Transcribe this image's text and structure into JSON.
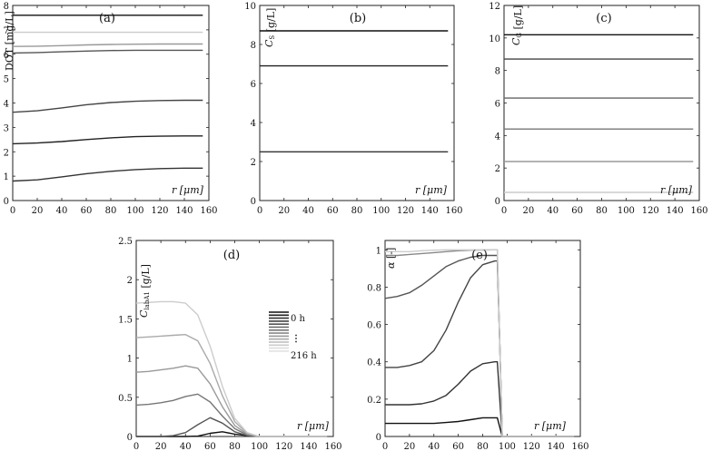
{
  "chart_data": [
    {
      "id": "a",
      "type": "line",
      "panel_label": "(a)",
      "ylabel": "DOT [mg/L]",
      "xlabel": "r [μm]",
      "xlim": [
        0,
        160
      ],
      "ylim": [
        0,
        8
      ],
      "xticks": [
        "0",
        "20",
        "40",
        "60",
        "80",
        "100",
        "120",
        "140",
        "160"
      ],
      "yticks": [
        "0",
        "1",
        "2",
        "3",
        "4",
        "5",
        "6",
        "7",
        "8"
      ],
      "x": [
        0,
        20,
        40,
        60,
        80,
        100,
        120,
        140,
        155
      ],
      "series": [
        {
          "color": "#111111",
          "values": [
            7.6,
            7.6,
            7.6,
            7.6,
            7.6,
            7.6,
            7.6,
            7.6,
            7.6
          ]
        },
        {
          "color": "#cccccc",
          "values": [
            6.9,
            6.9,
            6.9,
            6.9,
            6.9,
            6.9,
            6.9,
            6.9,
            6.9
          ]
        },
        {
          "color": "#999999",
          "values": [
            6.32,
            6.33,
            6.35,
            6.38,
            6.4,
            6.41,
            6.42,
            6.42,
            6.42
          ]
        },
        {
          "color": "#555555",
          "values": [
            6.05,
            6.07,
            6.1,
            6.13,
            6.15,
            6.16,
            6.16,
            6.16,
            6.16
          ]
        },
        {
          "color": "#444444",
          "values": [
            3.62,
            3.68,
            3.8,
            3.93,
            4.02,
            4.07,
            4.1,
            4.11,
            4.11
          ]
        },
        {
          "color": "#222222",
          "values": [
            2.33,
            2.36,
            2.42,
            2.5,
            2.57,
            2.62,
            2.64,
            2.65,
            2.65
          ]
        },
        {
          "color": "#333333",
          "values": [
            0.8,
            0.85,
            0.97,
            1.1,
            1.2,
            1.27,
            1.31,
            1.33,
            1.33
          ]
        }
      ]
    },
    {
      "id": "b",
      "type": "line",
      "panel_label": "(b)",
      "ylabel": "C_S [g/L]",
      "ylabel_main": "C",
      "ylabel_sub": "S",
      "ylabel_unit": " [g/L]",
      "xlabel": "r [μm]",
      "xlim": [
        0,
        160
      ],
      "ylim": [
        0,
        10
      ],
      "xticks": [
        "0",
        "20",
        "40",
        "60",
        "80",
        "100",
        "120",
        "140",
        "160"
      ],
      "yticks": [
        "0",
        "2",
        "4",
        "6",
        "8",
        "10"
      ],
      "x": [
        0,
        155
      ],
      "series": [
        {
          "color": "#111111",
          "values": [
            8.7,
            8.7
          ]
        },
        {
          "color": "#222222",
          "values": [
            6.9,
            6.9
          ]
        },
        {
          "color": "#333333",
          "values": [
            2.5,
            2.5
          ]
        }
      ]
    },
    {
      "id": "c",
      "type": "line",
      "panel_label": "(c)",
      "ylabel": "C_G [g/L]",
      "ylabel_main": "C",
      "ylabel_sub": "G",
      "ylabel_unit": " [g/L]",
      "xlabel": "r [μm]",
      "xlim": [
        0,
        160
      ],
      "ylim": [
        0,
        12
      ],
      "xticks": [
        "0",
        "20",
        "40",
        "60",
        "80",
        "100",
        "120",
        "140",
        "160"
      ],
      "yticks": [
        "0",
        "2",
        "4",
        "6",
        "8",
        "10",
        "12"
      ],
      "x": [
        0,
        155
      ],
      "series": [
        {
          "color": "#111111",
          "values": [
            10.2,
            10.2
          ]
        },
        {
          "color": "#444444",
          "values": [
            8.7,
            8.7
          ]
        },
        {
          "color": "#666666",
          "values": [
            6.3,
            6.3
          ]
        },
        {
          "color": "#777777",
          "values": [
            4.4,
            4.4
          ]
        },
        {
          "color": "#999999",
          "values": [
            2.4,
            2.4
          ]
        },
        {
          "color": "#cccccc",
          "values": [
            0.5,
            0.5
          ]
        }
      ]
    },
    {
      "id": "d",
      "type": "line",
      "panel_label": "(d)",
      "ylabel": "C_labA1 [g/L]",
      "ylabel_main": "C",
      "ylabel_sub": "labA1",
      "ylabel_unit": " [g/L]",
      "xlabel": "r [μm]",
      "xlim": [
        0,
        160
      ],
      "ylim": [
        0,
        2.5
      ],
      "xticks": [
        "0",
        "20",
        "40",
        "60",
        "80",
        "100",
        "120",
        "140",
        "160"
      ],
      "yticks": [
        "0",
        "0.5",
        "1",
        "1.5",
        "2",
        "2.5"
      ],
      "x": [
        0,
        10,
        20,
        30,
        40,
        50,
        60,
        70,
        80,
        90,
        100,
        110,
        120,
        130,
        140,
        150,
        155
      ],
      "series": [
        {
          "color": "#111111",
          "values": [
            0,
            0,
            0,
            0,
            0,
            0.005,
            0.04,
            0.06,
            0.03,
            0.01,
            0,
            0,
            0,
            0,
            0,
            0,
            0
          ]
        },
        {
          "color": "#555555",
          "values": [
            0,
            0,
            0,
            0.01,
            0.05,
            0.15,
            0.24,
            0.17,
            0.06,
            0.01,
            0,
            0,
            0,
            0,
            0,
            0,
            0
          ]
        },
        {
          "color": "#777777",
          "values": [
            0.4,
            0.41,
            0.43,
            0.46,
            0.51,
            0.54,
            0.44,
            0.26,
            0.1,
            0.02,
            0,
            0,
            0,
            0,
            0,
            0,
            0
          ]
        },
        {
          "color": "#999999",
          "values": [
            0.82,
            0.83,
            0.85,
            0.87,
            0.9,
            0.87,
            0.67,
            0.38,
            0.14,
            0.03,
            0,
            0,
            0,
            0,
            0,
            0,
            0
          ]
        },
        {
          "color": "#aaaaaa",
          "values": [
            1.26,
            1.27,
            1.28,
            1.29,
            1.3,
            1.22,
            0.93,
            0.52,
            0.19,
            0.04,
            0,
            0,
            0,
            0,
            0,
            0,
            0
          ]
        },
        {
          "color": "#cccccc",
          "values": [
            1.7,
            1.71,
            1.72,
            1.72,
            1.7,
            1.55,
            1.15,
            0.64,
            0.23,
            0.05,
            0,
            0,
            0,
            0,
            0,
            0,
            0
          ]
        }
      ],
      "legend": {
        "first": "0 h",
        "dots": "⋮",
        "last": "216 h"
      }
    },
    {
      "id": "e",
      "type": "line",
      "panel_label": "(e)",
      "ylabel": "α [-]",
      "ylabel_main": "α",
      "ylabel_sub": "",
      "ylabel_unit": " [-]",
      "xlabel": "r [μm]",
      "xlim": [
        0,
        160
      ],
      "ylim": [
        0,
        1.05
      ],
      "xticks": [
        "0",
        "20",
        "40",
        "60",
        "80",
        "100",
        "120",
        "140",
        "160"
      ],
      "yticks": [
        "0",
        "0.2",
        "0.4",
        "0.6",
        "0.8",
        "1"
      ],
      "x": [
        0,
        10,
        20,
        30,
        40,
        50,
        60,
        70,
        80,
        90,
        92,
        94,
        96,
        100,
        120,
        140,
        155
      ],
      "series": [
        {
          "color": "#111111",
          "values": [
            0.07,
            0.07,
            0.07,
            0.07,
            0.07,
            0.075,
            0.08,
            0.09,
            0.1,
            0.1,
            0.1,
            0.05,
            0,
            0,
            0,
            0,
            0
          ]
        },
        {
          "color": "#333333",
          "values": [
            0.17,
            0.17,
            0.17,
            0.175,
            0.19,
            0.22,
            0.28,
            0.35,
            0.39,
            0.4,
            0.4,
            0.2,
            0,
            0,
            0,
            0,
            0
          ]
        },
        {
          "color": "#444444",
          "values": [
            0.37,
            0.37,
            0.38,
            0.4,
            0.46,
            0.57,
            0.72,
            0.85,
            0.92,
            0.94,
            0.94,
            0.5,
            0,
            0,
            0,
            0,
            0
          ]
        },
        {
          "color": "#555555",
          "values": [
            0.74,
            0.75,
            0.77,
            0.81,
            0.86,
            0.91,
            0.94,
            0.96,
            0.97,
            0.97,
            0.97,
            0.5,
            0,
            0,
            0,
            0,
            0
          ]
        },
        {
          "color": "#888888",
          "values": [
            0.97,
            0.97,
            0.975,
            0.98,
            0.985,
            0.99,
            0.995,
            0.998,
            0.999,
            1.0,
            1.0,
            0.5,
            0,
            0,
            0,
            0,
            0
          ]
        },
        {
          "color": "#cccccc",
          "values": [
            0.99,
            0.99,
            0.99,
            0.995,
            0.998,
            1.0,
            1.0,
            1.0,
            1.0,
            1.0,
            1.0,
            0.5,
            0,
            0,
            0,
            0,
            0
          ]
        }
      ]
    }
  ]
}
